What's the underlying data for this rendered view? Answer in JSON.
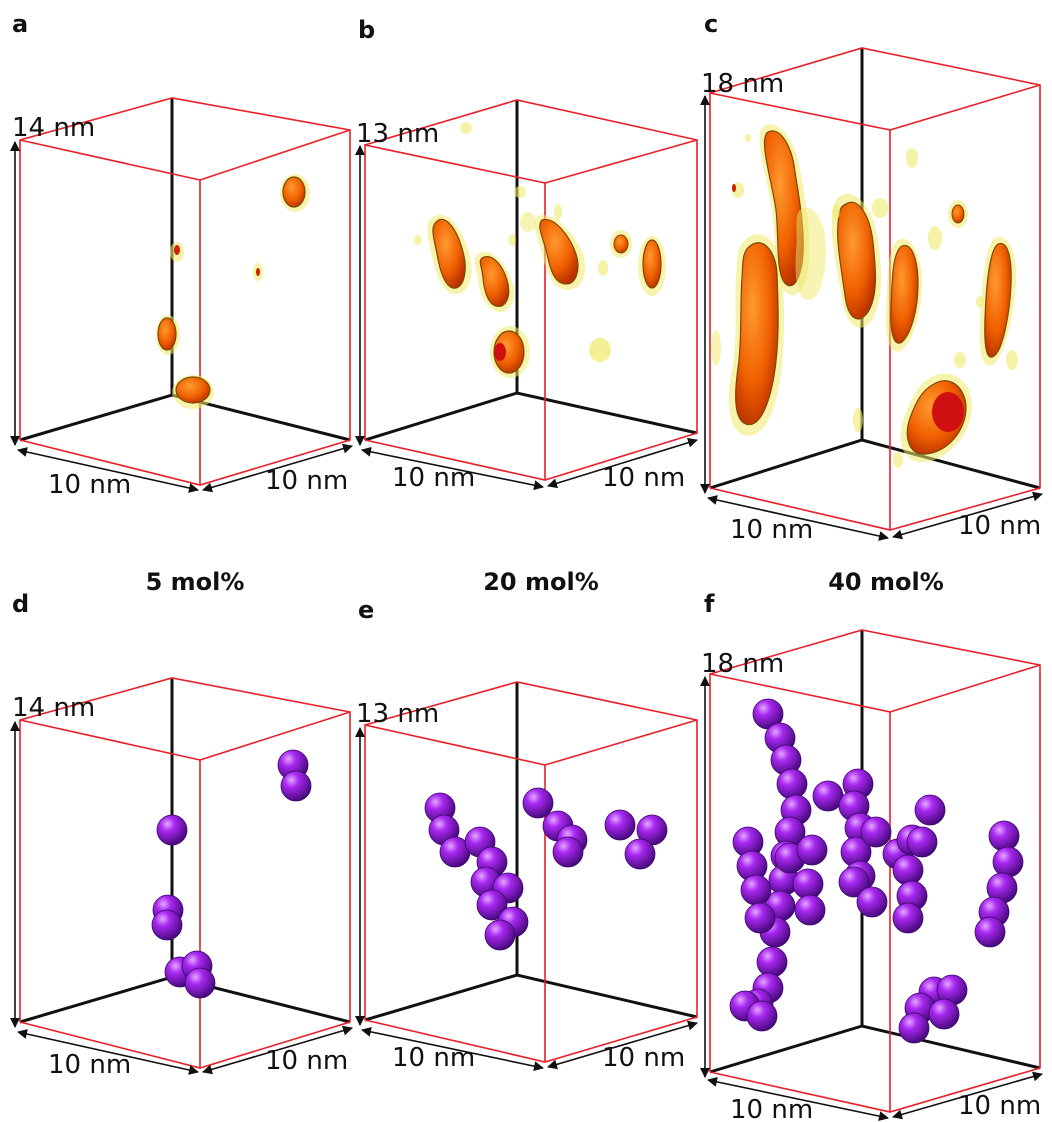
{
  "panels": [
    {
      "label": "a",
      "height": "14 nm",
      "width": "10 nm",
      "depth": "10 nm"
    },
    {
      "label": "b",
      "height": "13 nm",
      "width": "10 nm",
      "depth": "10 nm"
    },
    {
      "label": "c",
      "height": "18 nm",
      "width": "10 nm",
      "depth": "10 nm"
    },
    {
      "label": "d",
      "height": "14 nm",
      "width": "10 nm",
      "depth": "10 nm"
    },
    {
      "label": "e",
      "height": "13 nm",
      "width": "10 nm",
      "depth": "10 nm"
    },
    {
      "label": "f",
      "height": "18 nm",
      "width": "10 nm",
      "depth": "10 nm"
    }
  ],
  "captions": [
    "5 mol%",
    "20 mol%",
    "40 mol%"
  ],
  "colors": {
    "box_edge": "#e8202a",
    "axis": "#111111",
    "isosurface_core": "#ff6a00",
    "isosurface_shell": "#f0ea6a",
    "bead": "#9d20e0"
  }
}
